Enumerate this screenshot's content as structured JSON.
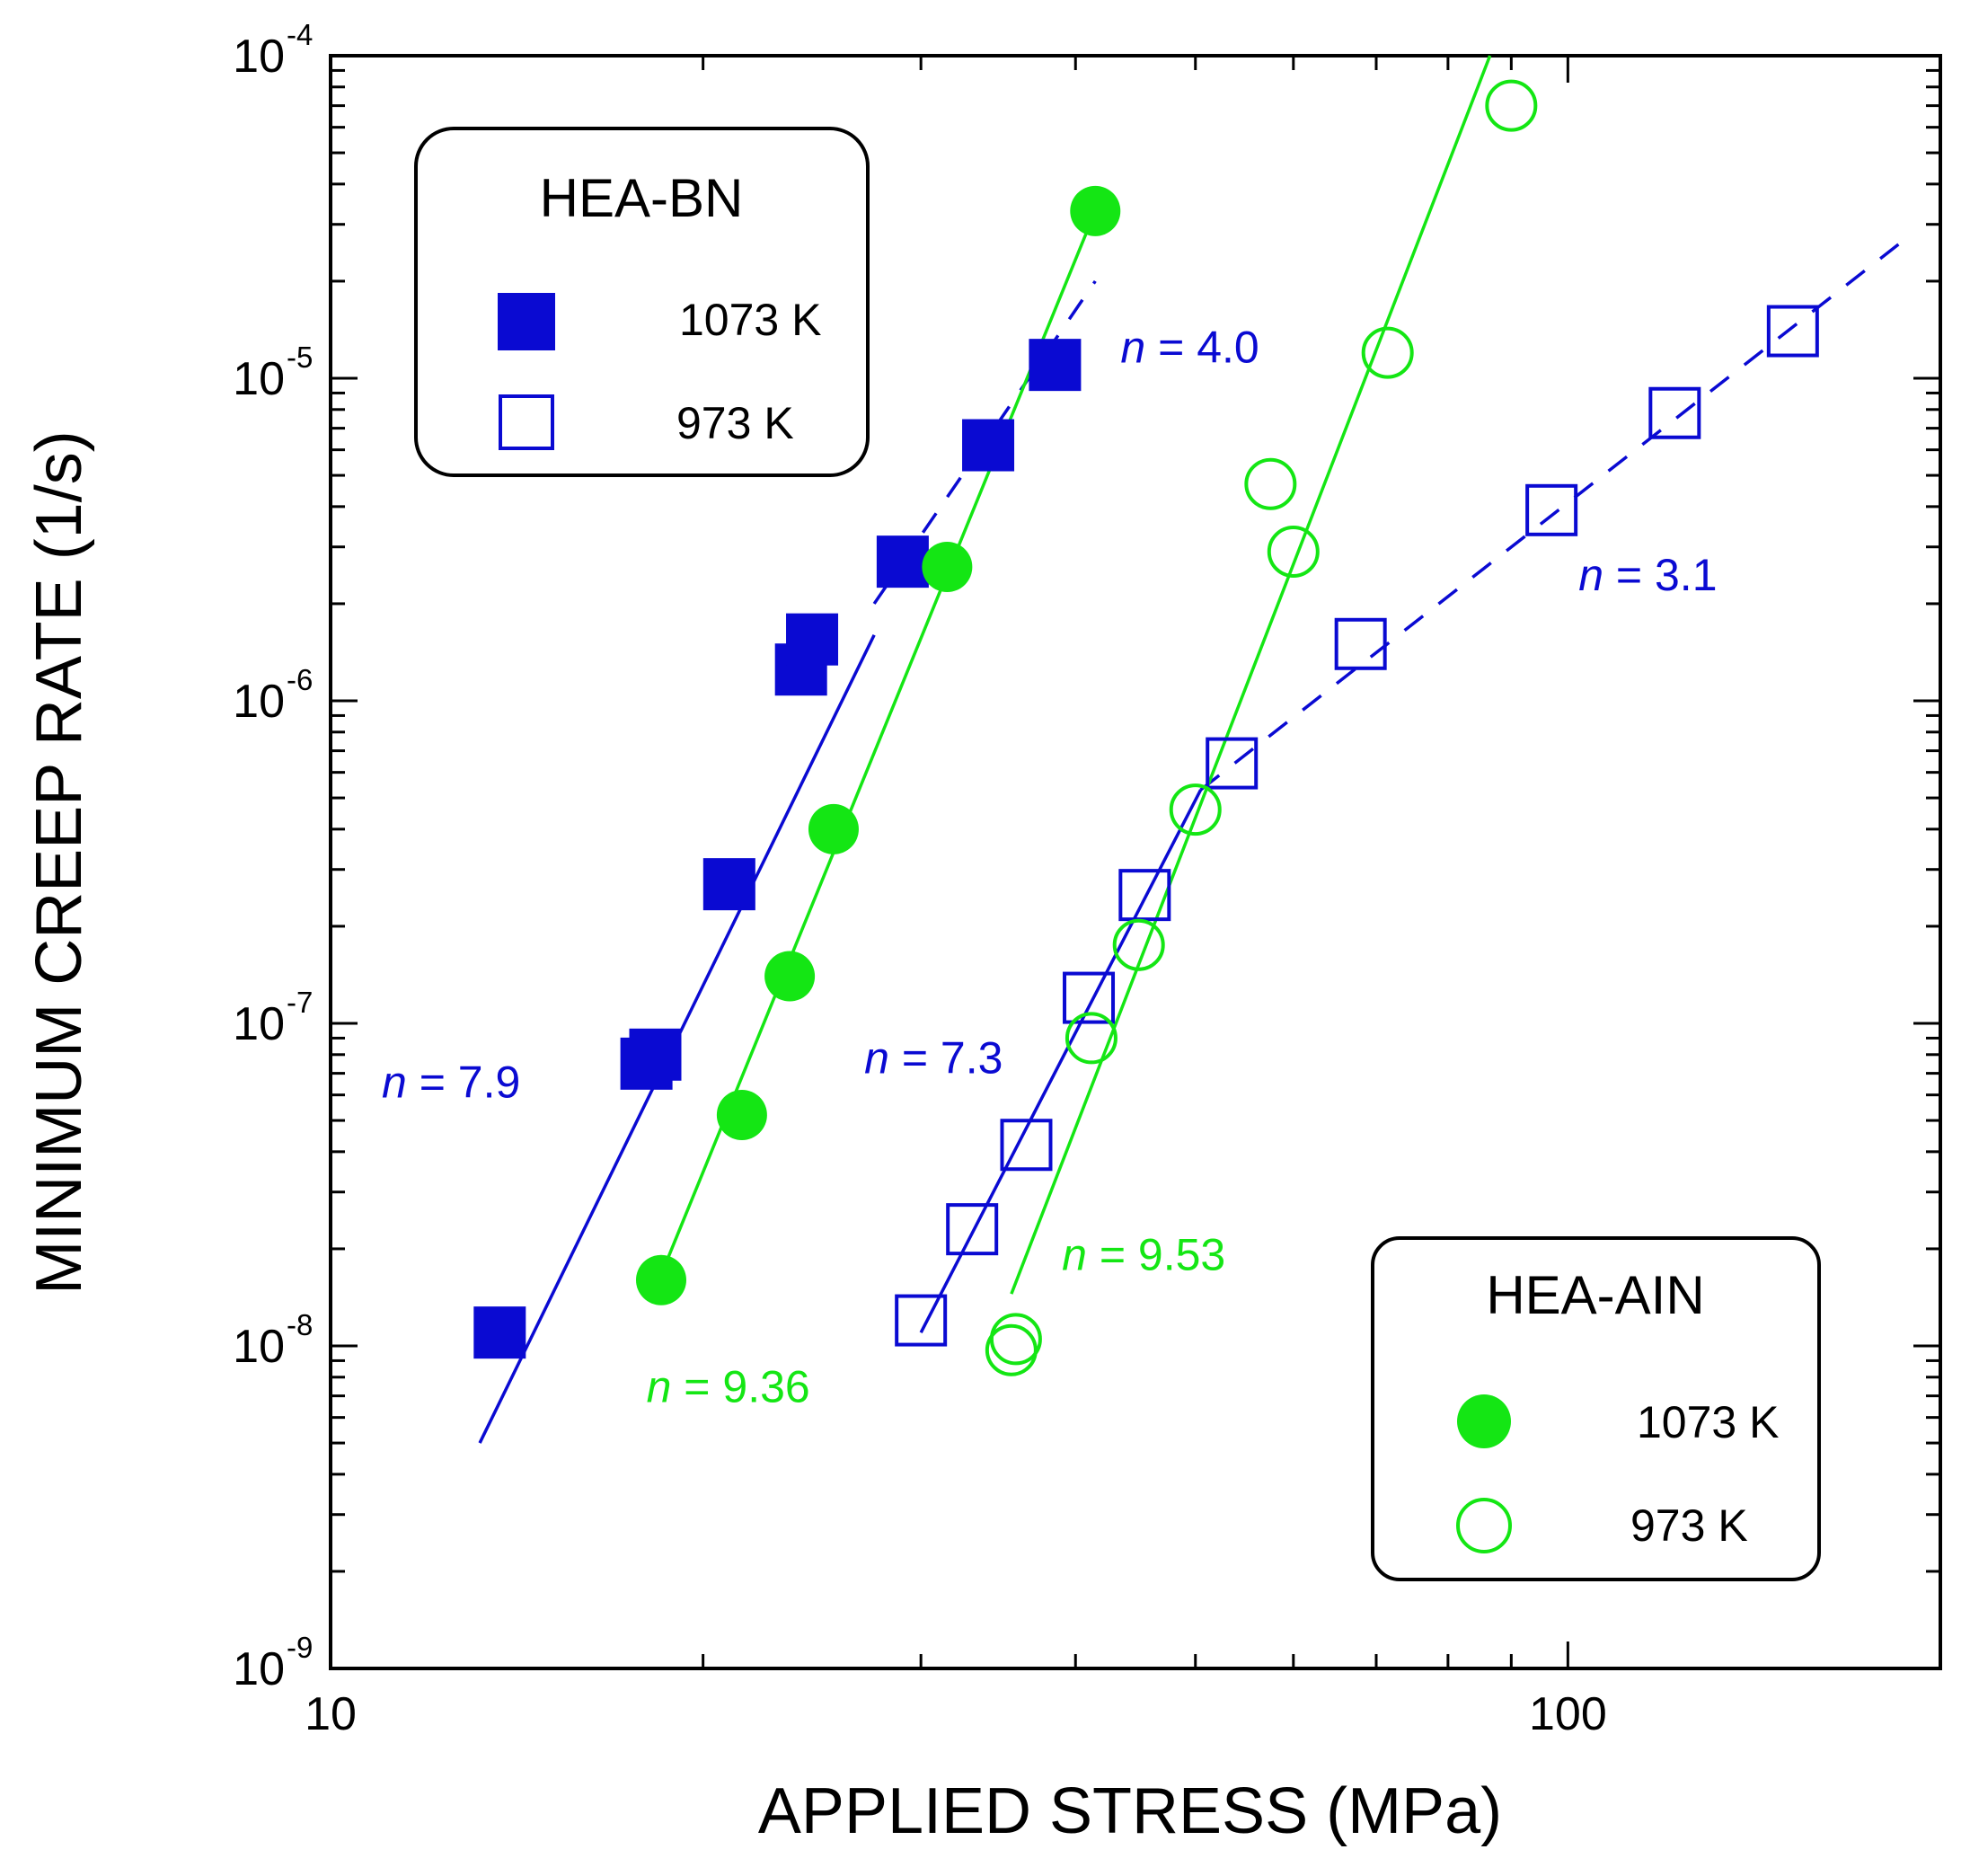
{
  "chart_data": {
    "type": "scatter",
    "title": "",
    "xlabel": "APPLIED STRESS (MPa)",
    "ylabel": "MINIMUM CREEP RATE (1/s)",
    "xscale": "log",
    "yscale": "log",
    "xlim": [
      10,
      200
    ],
    "ylim": [
      1e-09,
      0.0001
    ],
    "x_tick_labels": [
      {
        "value": 10,
        "label": "10"
      },
      {
        "value": 100,
        "label": "100"
      }
    ],
    "y_tick_labels": [
      {
        "value": 1e-09,
        "base": "10",
        "exp": "-9"
      },
      {
        "value": 1e-08,
        "base": "10",
        "exp": "-8"
      },
      {
        "value": 1e-07,
        "base": "10",
        "exp": "-7"
      },
      {
        "value": 1e-06,
        "base": "10",
        "exp": "-6"
      },
      {
        "value": 1e-05,
        "base": "10",
        "exp": "-5"
      },
      {
        "value": 0.0001,
        "base": "10",
        "exp": "-4"
      }
    ],
    "colors": {
      "blue": "#0a0ad2",
      "green": "#14e614",
      "axis": "#000000"
    },
    "legends": [
      {
        "title": "HEA-BN",
        "placement": "top-left",
        "entries": [
          {
            "label": "1073 K",
            "marker": "filled-square",
            "color": "blue"
          },
          {
            "label": "973 K",
            "marker": "open-square",
            "color": "blue"
          }
        ]
      },
      {
        "title": "HEA-AIN",
        "placement": "bottom-right",
        "entries": [
          {
            "label": "1073 K",
            "marker": "filled-circle",
            "color": "green"
          },
          {
            "label": "973 K",
            "marker": "open-circle",
            "color": "green"
          }
        ]
      }
    ],
    "series": [
      {
        "name": "HEA-BN 1073 K",
        "marker": "filled-square",
        "color": "blue",
        "x": [
          13.7,
          18.0,
          18.3,
          21.0,
          24.0,
          24.5,
          29.0,
          34.0,
          38.5
        ],
        "y": [
          1.1e-08,
          7.5e-08,
          8e-08,
          2.7e-07,
          1.25e-06,
          1.55e-06,
          2.7e-06,
          6.2e-06,
          1.1e-05
        ]
      },
      {
        "name": "HEA-BN 973 K",
        "marker": "open-square",
        "color": "blue",
        "x": [
          30.0,
          33.0,
          36.5,
          41.0,
          45.5,
          53.5,
          68.0,
          97.0,
          122.0,
          152.0
        ],
        "y": [
          1.2e-08,
          2.3e-08,
          4.2e-08,
          1.2e-07,
          2.5e-07,
          6.4e-07,
          1.5e-06,
          3.9e-06,
          7.8e-06,
          1.4e-05
        ]
      },
      {
        "name": "HEA-AIN 1073 K",
        "marker": "filled-circle",
        "color": "green",
        "x": [
          18.5,
          21.5,
          23.5,
          25.5,
          31.5,
          41.5
        ],
        "y": [
          1.6e-08,
          5.2e-08,
          1.4e-07,
          4e-07,
          2.6e-06,
          3.3e-05
        ]
      },
      {
        "name": "HEA-AIN 973 K",
        "marker": "open-circle",
        "color": "green",
        "x": [
          35.5,
          35.8,
          41.2,
          45.0,
          50.0,
          57.5,
          60.0,
          71.5,
          90.0
        ],
        "y": [
          9.7e-09,
          1.05e-08,
          9e-08,
          1.75e-07,
          4.6e-07,
          4.7e-06,
          2.9e-06,
          1.2e-05,
          7e-05
        ]
      }
    ],
    "fit_lines": [
      {
        "name": "HEA-BN 1073 K fit (solid)",
        "color": "blue",
        "style": "solid",
        "x": [
          13.2,
          27.5
        ],
        "y": [
          5e-09,
          1.6e-06
        ]
      },
      {
        "name": "HEA-BN 1073 K fit (dashed)",
        "color": "blue",
        "style": "dashed",
        "x": [
          27.5,
          41.5
        ],
        "y": [
          2e-06,
          2e-05
        ]
      },
      {
        "name": "HEA-BN 973 K fit (solid)",
        "color": "blue",
        "style": "solid",
        "x": [
          30.0,
          50.5
        ],
        "y": [
          1.1e-08,
          5.3e-07
        ]
      },
      {
        "name": "HEA-BN 973 K fit (dashed)",
        "color": "blue",
        "style": "dashed",
        "x": [
          50.5,
          185.0
        ],
        "y": [
          5.3e-07,
          2.6e-05
        ]
      },
      {
        "name": "HEA-AIN 1073 K fit",
        "color": "green",
        "style": "solid",
        "x": [
          18.3,
          41.5
        ],
        "y": [
          1.5e-08,
          3.3e-05
        ]
      },
      {
        "name": "HEA-AIN 973 K fit",
        "color": "green",
        "style": "solid",
        "x": [
          35.5,
          86.5
        ],
        "y": [
          1.45e-08,
          0.0001
        ]
      }
    ],
    "annotations": [
      {
        "prefix": "n",
        "text": " = 7.9",
        "color": "blue",
        "x": 11.0,
        "y": 5.9e-08
      },
      {
        "prefix": "n",
        "text": " = 4.0",
        "color": "blue",
        "x": 43.5,
        "y": 1.12e-05
      },
      {
        "prefix": "n",
        "text": " = 3.1",
        "color": "blue",
        "x": 102.0,
        "y": 2.2e-06
      },
      {
        "prefix": "n",
        "text": " = 7.3",
        "color": "blue",
        "x": 27.0,
        "y": 7e-08
      },
      {
        "prefix": "n",
        "text": " = 9.36",
        "color": "green",
        "x": 18.0,
        "y": 6.7e-09
      },
      {
        "prefix": "n",
        "text": " = 9.53",
        "color": "green",
        "x": 39.0,
        "y": 1.72e-08
      }
    ]
  }
}
